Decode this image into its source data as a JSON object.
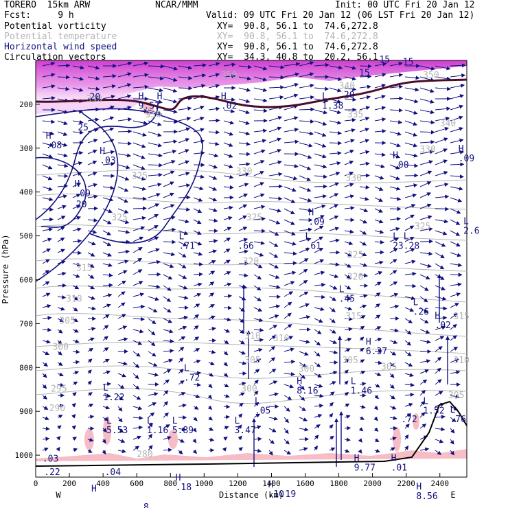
{
  "header": {
    "model": "TORERO  15km ARW",
    "center": "NCAR/MMM",
    "init": "Init: 00 UTC Fri 20 Jan 12",
    "fcst": "Fcst:     9 h",
    "valid": "Valid: 09 UTC Fri 20 Jan 12 (06 LST Fri 20 Jan 12)",
    "fields": [
      {
        "label": "Potential vorticity",
        "xy": "XY=  90.8, 56.1 to  74.6,272.8",
        "color": "#000000"
      },
      {
        "label": "Potential temperature",
        "xy": "XY=  90.8, 56.1 to  74.6,272.8",
        "color": "#b4b4b4"
      },
      {
        "label": "Horizontal wind speed",
        "xy": "XY=  90.8, 56.1 to  74.6,272.8",
        "color": "#101080"
      },
      {
        "label": "Circulation vectors",
        "xy": "XY=  34.3, 40.8 to  20.2, 56.1",
        "color": "#000000"
      }
    ]
  },
  "chart_data": {
    "type": "cross-section",
    "xlabel": "Distance (km)",
    "ylabel": "Pressure (hPa)",
    "x_ticks": [
      0,
      200,
      400,
      600,
      800,
      1000,
      1200,
      1400,
      1600,
      1800,
      2000,
      2200,
      2400
    ],
    "y_ticks": [
      200,
      300,
      400,
      500,
      600,
      700,
      800,
      900,
      1000
    ],
    "xlim": [
      0,
      2560
    ],
    "ylim": [
      1050,
      100
    ],
    "end_labels": {
      "left": "W",
      "right": "E"
    },
    "theta_labels": [
      {
        "x": 300,
        "p": 195,
        "v": "340"
      },
      {
        "x": 650,
        "p": 230,
        "v": "330"
      },
      {
        "x": 1100,
        "p": 140,
        "v": "350"
      },
      {
        "x": 1800,
        "p": 165,
        "v": "340"
      },
      {
        "x": 2300,
        "p": 140,
        "v": "350"
      },
      {
        "x": 2400,
        "p": 250,
        "v": "340"
      },
      {
        "x": 1850,
        "p": 230,
        "v": "335"
      },
      {
        "x": 570,
        "p": 370,
        "v": "325"
      },
      {
        "x": 1190,
        "p": 360,
        "v": "330"
      },
      {
        "x": 1840,
        "p": 375,
        "v": "330"
      },
      {
        "x": 2280,
        "p": 310,
        "v": "330"
      },
      {
        "x": 450,
        "p": 465,
        "v": "325"
      },
      {
        "x": 1250,
        "p": 465,
        "v": "325"
      },
      {
        "x": 2250,
        "p": 485,
        "v": "325"
      },
      {
        "x": 240,
        "p": 580,
        "v": "315"
      },
      {
        "x": 1230,
        "p": 565,
        "v": "320"
      },
      {
        "x": 1850,
        "p": 550,
        "v": "325"
      },
      {
        "x": 1850,
        "p": 600,
        "v": "320"
      },
      {
        "x": 180,
        "p": 650,
        "v": "310"
      },
      {
        "x": 1840,
        "p": 690,
        "v": "315"
      },
      {
        "x": 140,
        "p": 700,
        "v": "305"
      },
      {
        "x": 1240,
        "p": 735,
        "v": "310"
      },
      {
        "x": 1410,
        "p": 740,
        "v": "310"
      },
      {
        "x": 2480,
        "p": 690,
        "v": "315"
      },
      {
        "x": 100,
        "p": 760,
        "v": "300"
      },
      {
        "x": 1240,
        "p": 790,
        "v": "305"
      },
      {
        "x": 1560,
        "p": 810,
        "v": "300"
      },
      {
        "x": 1820,
        "p": 790,
        "v": "305"
      },
      {
        "x": 2050,
        "p": 805,
        "v": "305"
      },
      {
        "x": 2480,
        "p": 790,
        "v": "310"
      },
      {
        "x": 90,
        "p": 855,
        "v": "295"
      },
      {
        "x": 1220,
        "p": 855,
        "v": "300"
      },
      {
        "x": 80,
        "p": 900,
        "v": "290"
      },
      {
        "x": 600,
        "p": 1005,
        "v": "280"
      },
      {
        "x": 2450,
        "p": 870,
        "v": "305"
      }
    ],
    "wind_labels": [
      {
        "x": 320,
        "p": 190,
        "v": "20"
      },
      {
        "x": 250,
        "p": 260,
        "v": "25"
      },
      {
        "x": 240,
        "p": 435,
        "v": "20"
      },
      {
        "x": 1830,
        "p": 185,
        "v": "20"
      },
      {
        "x": 1920,
        "p": 135,
        "v": "15"
      },
      {
        "x": 2040,
        "p": 105,
        "v": "15"
      },
      {
        "x": 2180,
        "p": 110,
        "v": "15"
      }
    ],
    "extrema": [
      {
        "x": 60,
        "p": 300,
        "t": "H",
        "v": ".08"
      },
      {
        "x": 230,
        "p": 410,
        "t": "H",
        "v": ".09"
      },
      {
        "x": 380,
        "p": 335,
        "t": "H",
        "v": ".03"
      },
      {
        "x": 610,
        "p": 210,
        "t": "H",
        "v": "9.57"
      },
      {
        "x": 720,
        "p": 210,
        "t": "H",
        "v": ""
      },
      {
        "x": 1100,
        "p": 210,
        "t": "H",
        "v": ".02"
      },
      {
        "x": 1700,
        "p": 210,
        "t": "L",
        "v": "1.38"
      },
      {
        "x": 2120,
        "p": 345,
        "t": "H",
        "v": ".00"
      },
      {
        "x": 2510,
        "p": 330,
        "t": "H",
        "v": ".09"
      },
      {
        "x": 850,
        "p": 530,
        "t": "L",
        "v": ".71"
      },
      {
        "x": 1200,
        "p": 530,
        "t": "",
        "v": ".66"
      },
      {
        "x": 1620,
        "p": 475,
        "t": "H",
        "v": ".09"
      },
      {
        "x": 1600,
        "p": 530,
        "t": "L",
        "v": ".61"
      },
      {
        "x": 2120,
        "p": 530,
        "t": "L L",
        "v": "23.28"
      },
      {
        "x": 2540,
        "p": 495,
        "t": "L",
        "v": "2.6"
      },
      {
        "x": 1800,
        "p": 650,
        "t": "L",
        "v": ".45"
      },
      {
        "x": 2240,
        "p": 680,
        "t": "L",
        "v": ".26"
      },
      {
        "x": 2370,
        "p": 710,
        "t": "H",
        "v": ".02"
      },
      {
        "x": 1960,
        "p": 770,
        "t": "H",
        "v": "6.37"
      },
      {
        "x": 880,
        "p": 830,
        "t": "L",
        "v": ".72"
      },
      {
        "x": 1550,
        "p": 860,
        "t": "H",
        "v": "8.16"
      },
      {
        "x": 1870,
        "p": 860,
        "t": "L",
        "v": "1.46"
      },
      {
        "x": 400,
        "p": 875,
        "t": "L",
        "v": "1.22"
      },
      {
        "x": 1300,
        "p": 905,
        "t": "L",
        "v": ".05"
      },
      {
        "x": 2300,
        "p": 905,
        "t": "L",
        "v": "1.52"
      },
      {
        "x": 2170,
        "p": 925,
        "t": "",
        "v": ".72"
      },
      {
        "x": 2460,
        "p": 925,
        "t": "L",
        "v": ".76"
      },
      {
        "x": 420,
        "p": 950,
        "t": "L",
        "v": "5.53"
      },
      {
        "x": 660,
        "p": 950,
        "t": "L",
        "v": "1.16"
      },
      {
        "x": 810,
        "p": 950,
        "t": "L",
        "v": "5.89"
      },
      {
        "x": 1180,
        "p": 950,
        "t": "L",
        "v": "3.47"
      },
      {
        "x": 40,
        "p": 1015,
        "t": "",
        "v": ".03"
      },
      {
        "x": 50,
        "p": 1045,
        "t": "",
        "v": ".22"
      },
      {
        "x": 410,
        "p": 1045,
        "t": "",
        "v": ".04"
      },
      {
        "x": 1890,
        "p": 1035,
        "t": "H",
        "v": "9.77"
      },
      {
        "x": 2110,
        "p": 1035,
        "t": "H",
        "v": ".01"
      },
      {
        "x": 830,
        "p": 1080,
        "t": "H",
        "v": ".18"
      },
      {
        "x": 1380,
        "p": 1095,
        "t": "H",
        "v": ".10"
      },
      {
        "x": 1450,
        "p": 1095,
        "t": "",
        "v": ".19"
      },
      {
        "x": 2260,
        "p": 1100,
        "t": "H",
        "v": "8.56"
      },
      {
        "x": 330,
        "p": 1105,
        "t": "H",
        "v": ""
      },
      {
        "x": 640,
        "p": 1125,
        "t": "",
        "v": "8"
      }
    ]
  }
}
